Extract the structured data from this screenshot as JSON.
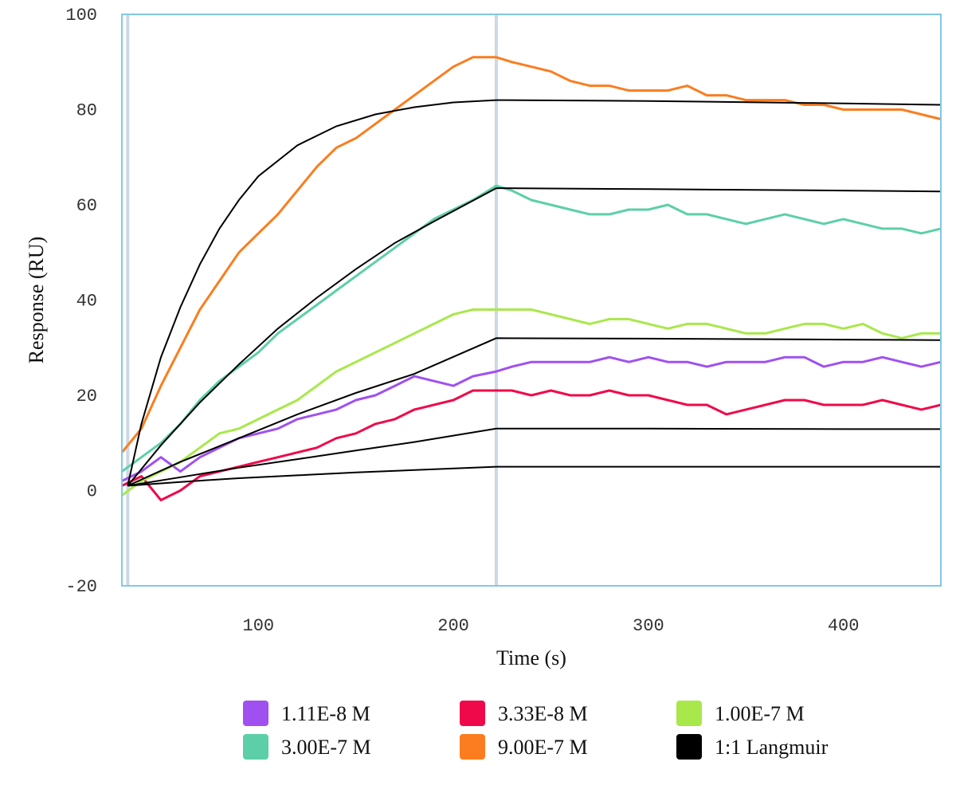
{
  "chart_data": {
    "type": "line",
    "xlabel": "Time (s)",
    "ylabel": "Response (RU)",
    "xlim": [
      30,
      450
    ],
    "ylim": [
      -20,
      100
    ],
    "xticks": [
      100,
      200,
      300,
      400
    ],
    "yticks": [
      -20,
      0,
      20,
      40,
      60,
      80,
      100
    ],
    "injection_markers": [
      33,
      222
    ],
    "frame_color": "#80c8e8",
    "legend_position": "bottom",
    "series": [
      {
        "name": "1.11E-8 M",
        "color": "#a050f0",
        "x": [
          30,
          40,
          50,
          60,
          70,
          80,
          90,
          100,
          110,
          120,
          130,
          140,
          150,
          160,
          170,
          180,
          190,
          200,
          210,
          222,
          230,
          240,
          250,
          260,
          270,
          280,
          290,
          300,
          310,
          320,
          330,
          340,
          350,
          360,
          370,
          380,
          390,
          400,
          410,
          420,
          430,
          440,
          450
        ],
        "y": [
          2,
          4,
          7,
          4,
          7,
          9,
          11,
          12,
          13,
          15,
          16,
          17,
          19,
          20,
          22,
          24,
          23,
          22,
          24,
          25,
          26,
          27,
          27,
          27,
          27,
          28,
          27,
          28,
          27,
          27,
          26,
          27,
          27,
          27,
          28,
          28,
          26,
          27,
          27,
          28,
          27,
          26,
          27
        ]
      },
      {
        "name": "3.33E-8 M",
        "color": "#f0094a",
        "x": [
          30,
          40,
          50,
          60,
          70,
          80,
          90,
          100,
          110,
          120,
          130,
          140,
          150,
          160,
          170,
          180,
          190,
          200,
          210,
          222,
          230,
          240,
          250,
          260,
          270,
          280,
          290,
          300,
          310,
          320,
          330,
          340,
          350,
          360,
          370,
          380,
          390,
          400,
          410,
          420,
          430,
          440,
          450
        ],
        "y": [
          1,
          3,
          -2,
          0,
          3,
          4,
          5,
          6,
          7,
          8,
          9,
          11,
          12,
          14,
          15,
          17,
          18,
          19,
          21,
          21,
          21,
          20,
          21,
          20,
          20,
          21,
          20,
          20,
          19,
          18,
          18,
          16,
          17,
          18,
          19,
          19,
          18,
          18,
          18,
          19,
          18,
          17,
          18
        ]
      },
      {
        "name": "1.00E-7 M",
        "color": "#a8e84a",
        "x": [
          30,
          40,
          50,
          60,
          70,
          80,
          90,
          100,
          110,
          120,
          130,
          140,
          150,
          160,
          170,
          180,
          190,
          200,
          210,
          222,
          230,
          240,
          250,
          260,
          270,
          280,
          290,
          300,
          310,
          320,
          330,
          340,
          350,
          360,
          370,
          380,
          390,
          400,
          410,
          420,
          430,
          440,
          450
        ],
        "y": [
          -1,
          2,
          4,
          6,
          9,
          12,
          13,
          15,
          17,
          19,
          22,
          25,
          27,
          29,
          31,
          33,
          35,
          37,
          38,
          38,
          38,
          38,
          37,
          36,
          35,
          36,
          36,
          35,
          34,
          35,
          35,
          34,
          33,
          33,
          34,
          35,
          35,
          34,
          35,
          33,
          32,
          33,
          33
        ]
      },
      {
        "name": "3.00E-7 M",
        "color": "#5ccfa9",
        "x": [
          30,
          40,
          50,
          60,
          70,
          80,
          90,
          100,
          110,
          120,
          130,
          140,
          150,
          160,
          170,
          180,
          190,
          200,
          210,
          222,
          230,
          240,
          250,
          260,
          270,
          280,
          290,
          300,
          310,
          320,
          330,
          340,
          350,
          360,
          370,
          380,
          390,
          400,
          410,
          420,
          430,
          440,
          450
        ],
        "y": [
          4,
          7,
          10,
          14,
          19,
          23,
          26,
          29,
          33,
          36,
          39,
          42,
          45,
          48,
          51,
          54,
          57,
          59,
          61,
          64,
          63,
          61,
          60,
          59,
          58,
          58,
          59,
          59,
          60,
          58,
          58,
          57,
          56,
          57,
          58,
          57,
          56,
          57,
          56,
          55,
          55,
          54,
          55
        ]
      },
      {
        "name": "9.00E-7 M",
        "color": "#fb7d1f",
        "x": [
          30,
          40,
          50,
          60,
          70,
          80,
          90,
          100,
          110,
          120,
          130,
          140,
          150,
          160,
          170,
          180,
          190,
          200,
          210,
          222,
          230,
          240,
          250,
          260,
          270,
          280,
          290,
          300,
          310,
          320,
          330,
          340,
          350,
          360,
          370,
          380,
          390,
          400,
          410,
          420,
          430,
          440,
          450
        ],
        "y": [
          8,
          13,
          22,
          30,
          38,
          44,
          50,
          54,
          58,
          63,
          68,
          72,
          74,
          77,
          80,
          83,
          86,
          89,
          91,
          91,
          90,
          89,
          88,
          86,
          85,
          85,
          84,
          84,
          84,
          85,
          83,
          83,
          82,
          82,
          82,
          81,
          81,
          80,
          80,
          80,
          80,
          79,
          78
        ]
      },
      {
        "name": "1:1 Langmuir",
        "color": "#000000",
        "fit_curves": [
          {
            "x": [
              33,
              60,
              90,
              120,
              150,
              180,
              222,
              300,
              400,
              450
            ],
            "y": [
              1,
              1.8,
              2.6,
              3.2,
              3.8,
              4.3,
              5,
              5,
              5,
              5
            ]
          },
          {
            "x": [
              33,
              60,
              90,
              120,
              150,
              180,
              222,
              300,
              400,
              450
            ],
            "y": [
              1,
              2.8,
              4.8,
              6.6,
              8.4,
              10.2,
              13,
              13,
              12.9,
              12.9
            ]
          },
          {
            "x": [
              33,
              60,
              90,
              120,
              150,
              180,
              222,
              300,
              400,
              450
            ],
            "y": [
              1,
              6,
              11,
              16,
              20.5,
              24.5,
              32,
              31.9,
              31.7,
              31.6
            ]
          },
          {
            "x": [
              33,
              50,
              70,
              90,
              110,
              130,
              150,
              170,
              190,
              222,
              300,
              400,
              450
            ],
            "y": [
              1,
              9.5,
              18.5,
              26.5,
              34,
              40.5,
              46.5,
              52,
              56.5,
              63.5,
              63.3,
              63,
              62.8
            ]
          },
          {
            "x": [
              33,
              40,
              50,
              60,
              70,
              80,
              90,
              100,
              120,
              140,
              160,
              180,
              200,
              222,
              300,
              400,
              450
            ],
            "y": [
              1,
              14,
              28,
              38.5,
              47.5,
              55,
              61,
              66,
              72.5,
              76.5,
              79,
              80.5,
              81.5,
              82,
              81.8,
              81.3,
              81
            ]
          }
        ]
      }
    ]
  }
}
